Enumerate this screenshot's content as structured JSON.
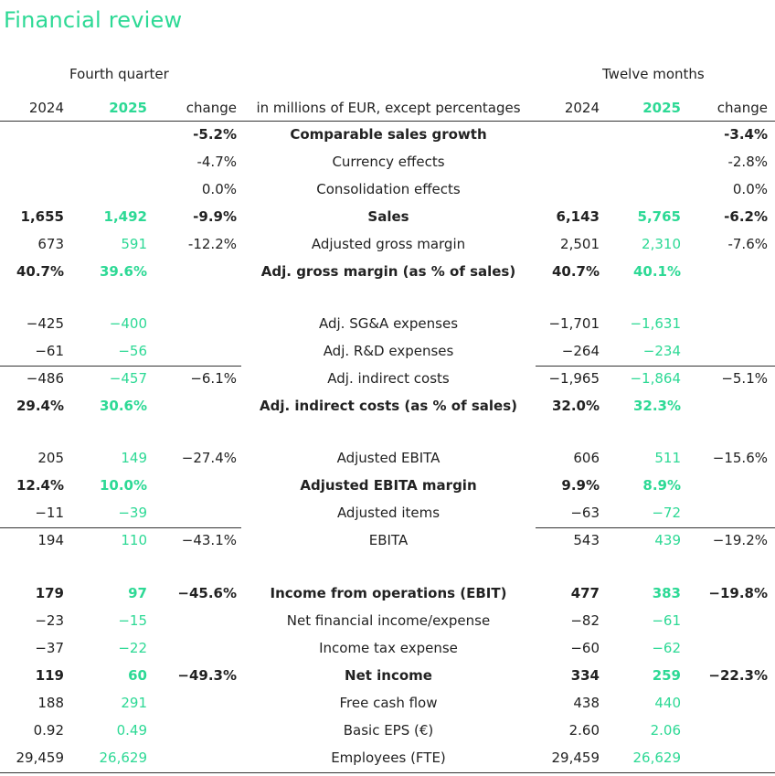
{
  "title": "Financial review",
  "groups": {
    "quarter": "Fourth quarter",
    "year": "Twelve months"
  },
  "header": {
    "q_prev": "2024",
    "q_cur": "2025",
    "q_change": "change",
    "label": "in millions of EUR, except percentages",
    "y_prev": "2024",
    "y_cur": "2025",
    "y_change": "change"
  },
  "colors": {
    "accent": "#2dd995",
    "text": "#222222"
  },
  "rows": [
    {
      "q_prev": "",
      "q_cur": "",
      "q_change": "-5.2%",
      "label": "Comparable sales growth",
      "y_prev": "",
      "y_cur": "",
      "y_change": "-3.4%",
      "bold": true
    },
    {
      "q_prev": "",
      "q_cur": "",
      "q_change": "-4.7%",
      "label": "Currency effects",
      "y_prev": "",
      "y_cur": "",
      "y_change": "-2.8%"
    },
    {
      "q_prev": "",
      "q_cur": "",
      "q_change": "0.0%",
      "label": "Consolidation effects",
      "y_prev": "",
      "y_cur": "",
      "y_change": "0.0%"
    },
    {
      "q_prev": "1,655",
      "q_cur": "1,492",
      "q_change": "-9.9%",
      "label": "Sales",
      "y_prev": "6,143",
      "y_cur": "5,765",
      "y_change": "-6.2%",
      "bold": true
    },
    {
      "q_prev": "673",
      "q_cur": "591",
      "q_change": "-12.2%",
      "label": "Adjusted gross margin",
      "y_prev": "2,501",
      "y_cur": "2,310",
      "y_change": "-7.6%"
    },
    {
      "q_prev": "40.7%",
      "q_cur": "39.6%",
      "q_change": "",
      "label": "Adj. gross margin (as % of sales)",
      "y_prev": "40.7%",
      "y_cur": "40.1%",
      "y_change": "",
      "bold": true
    },
    {
      "q_prev": "−425",
      "q_cur": "−400",
      "q_change": "",
      "label": "Adj. SG&A expenses",
      "y_prev": "−1,701",
      "y_cur": "−1,631",
      "y_change": ""
    },
    {
      "q_prev": "−61",
      "q_cur": "−56",
      "q_change": "",
      "label": "Adj. R&D expenses",
      "y_prev": "−264",
      "y_cur": "−234",
      "y_change": ""
    },
    {
      "q_prev": "−486",
      "q_cur": "−457",
      "q_change": "−6.1%",
      "label": "Adj. indirect costs",
      "y_prev": "−1,965",
      "y_cur": "−1,864",
      "y_change": "−5.1%"
    },
    {
      "q_prev": "29.4%",
      "q_cur": "30.6%",
      "q_change": "",
      "label": "Adj. indirect costs (as % of sales)",
      "y_prev": "32.0%",
      "y_cur": "32.3%",
      "y_change": "",
      "bold": true
    },
    {
      "q_prev": "205",
      "q_cur": "149",
      "q_change": "−27.4%",
      "label": "Adjusted EBITA",
      "y_prev": "606",
      "y_cur": "511",
      "y_change": "−15.6%"
    },
    {
      "q_prev": "12.4%",
      "q_cur": "10.0%",
      "q_change": "",
      "label": "Adjusted EBITA margin",
      "y_prev": "9.9%",
      "y_cur": "8.9%",
      "y_change": "",
      "bold": true
    },
    {
      "q_prev": "−11",
      "q_cur": "−39",
      "q_change": "",
      "label": "Adjusted items",
      "y_prev": "−63",
      "y_cur": "−72",
      "y_change": ""
    },
    {
      "q_prev": "194",
      "q_cur": "110",
      "q_change": "−43.1%",
      "label": "EBITA",
      "y_prev": "543",
      "y_cur": "439",
      "y_change": "−19.2%"
    },
    {
      "q_prev": "179",
      "q_cur": "97",
      "q_change": "−45.6%",
      "label": "Income from operations (EBIT)",
      "y_prev": "477",
      "y_cur": "383",
      "y_change": "−19.8%",
      "bold": true
    },
    {
      "q_prev": "−23",
      "q_cur": "−15",
      "q_change": "",
      "label": "Net financial income/expense",
      "y_prev": "−82",
      "y_cur": "−61",
      "y_change": ""
    },
    {
      "q_prev": "−37",
      "q_cur": "−22",
      "q_change": "",
      "label": "Income tax expense",
      "y_prev": "−60",
      "y_cur": "−62",
      "y_change": ""
    },
    {
      "q_prev": "119",
      "q_cur": "60",
      "q_change": "−49.3%",
      "label": "Net income",
      "y_prev": "334",
      "y_cur": "259",
      "y_change": "−22.3%",
      "bold": true
    },
    {
      "q_prev": "188",
      "q_cur": "291",
      "q_change": "",
      "label": "Free cash flow",
      "y_prev": "438",
      "y_cur": "440",
      "y_change": ""
    },
    {
      "q_prev": "0.92",
      "q_cur": "0.49",
      "q_change": "",
      "label": "Basic EPS (€)",
      "y_prev": "2.60",
      "y_cur": "2.06",
      "y_change": ""
    },
    {
      "q_prev": "29,459",
      "q_cur": "26,629",
      "q_change": "",
      "label": "Employees (FTE)",
      "y_prev": "29,459",
      "y_cur": "26,629",
      "y_change": ""
    }
  ]
}
